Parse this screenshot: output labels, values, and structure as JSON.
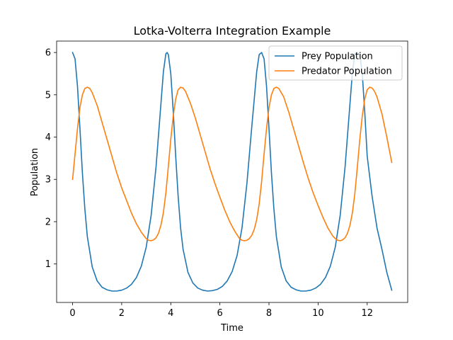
{
  "chart_data": {
    "type": "line",
    "title": "Lotka-Volterra Integration Example",
    "xlabel": "Time",
    "ylabel": "Population",
    "xlim": [
      -0.65,
      13.65
    ],
    "ylim": [
      0.09,
      6.27
    ],
    "xticks": [
      0,
      2,
      4,
      6,
      8,
      10,
      12
    ],
    "yticks": [
      1,
      2,
      3,
      4,
      5,
      6
    ],
    "grid": false,
    "legend_position": "upper-right",
    "series": [
      {
        "name": "Prey Population",
        "color": "#1f77b4",
        "x": [
          0,
          0.1,
          0.2,
          0.3,
          0.4,
          0.5,
          0.6,
          0.8,
          1.0,
          1.2,
          1.4,
          1.6,
          1.8,
          2.0,
          2.2,
          2.4,
          2.6,
          2.8,
          3.0,
          3.2,
          3.4,
          3.6,
          3.7,
          3.8,
          3.85,
          3.9,
          4.0,
          4.1,
          4.2,
          4.3,
          4.4,
          4.5,
          4.7,
          4.9,
          5.1,
          5.3,
          5.5,
          5.7,
          5.9,
          6.1,
          6.3,
          6.5,
          6.7,
          6.9,
          7.1,
          7.3,
          7.5,
          7.6,
          7.7,
          7.8,
          7.9,
          8.0,
          8.1,
          8.2,
          8.3,
          8.5,
          8.7,
          8.9,
          9.1,
          9.3,
          9.5,
          9.7,
          9.9,
          10.1,
          10.3,
          10.5,
          10.7,
          10.9,
          11.1,
          11.3,
          11.4,
          11.5,
          11.6,
          11.7,
          11.8,
          11.9,
          12.0,
          12.2,
          12.4,
          12.6,
          12.8,
          13.0
        ],
        "y": [
          6.0,
          5.85,
          5.2,
          4.2,
          3.15,
          2.3,
          1.65,
          0.93,
          0.6,
          0.45,
          0.39,
          0.36,
          0.36,
          0.38,
          0.43,
          0.52,
          0.68,
          0.95,
          1.4,
          2.15,
          3.3,
          4.8,
          5.55,
          5.97,
          6.0,
          5.95,
          5.5,
          4.6,
          3.55,
          2.6,
          1.85,
          1.35,
          0.8,
          0.55,
          0.43,
          0.38,
          0.36,
          0.37,
          0.4,
          0.47,
          0.6,
          0.82,
          1.2,
          1.85,
          2.9,
          4.25,
          5.55,
          5.95,
          6.0,
          5.85,
          5.2,
          4.2,
          3.15,
          2.3,
          1.65,
          0.93,
          0.6,
          0.45,
          0.39,
          0.36,
          0.36,
          0.38,
          0.43,
          0.52,
          0.68,
          0.95,
          1.4,
          2.15,
          3.3,
          4.8,
          5.55,
          5.97,
          6.0,
          5.95,
          5.5,
          4.6,
          3.55,
          2.6,
          1.85,
          1.35,
          0.8,
          0.38
        ]
      },
      {
        "name": "Predator Population",
        "color": "#ff7f0e",
        "x": [
          0,
          0.1,
          0.2,
          0.3,
          0.4,
          0.5,
          0.6,
          0.7,
          0.8,
          1.0,
          1.2,
          1.4,
          1.6,
          1.8,
          2.0,
          2.2,
          2.4,
          2.6,
          2.8,
          3.0,
          3.1,
          3.2,
          3.3,
          3.4,
          3.5,
          3.6,
          3.7,
          3.8,
          3.9,
          4.0,
          4.1,
          4.2,
          4.3,
          4.4,
          4.5,
          4.6,
          4.8,
          5.0,
          5.2,
          5.4,
          5.6,
          5.8,
          6.0,
          6.2,
          6.4,
          6.6,
          6.8,
          6.9,
          7.0,
          7.1,
          7.2,
          7.3,
          7.4,
          7.5,
          7.6,
          7.7,
          7.8,
          7.9,
          8.0,
          8.1,
          8.2,
          8.3,
          8.4,
          8.6,
          8.8,
          9.0,
          9.2,
          9.4,
          9.6,
          9.8,
          10.0,
          10.2,
          10.4,
          10.6,
          10.7,
          10.8,
          10.9,
          11.0,
          11.1,
          11.2,
          11.3,
          11.4,
          11.5,
          11.6,
          11.7,
          11.8,
          11.9,
          12.0,
          12.1,
          12.2,
          12.3,
          12.4,
          12.6,
          12.8,
          13.0
        ],
        "y": [
          3.0,
          3.6,
          4.2,
          4.7,
          5.0,
          5.15,
          5.18,
          5.15,
          5.05,
          4.75,
          4.35,
          3.95,
          3.55,
          3.15,
          2.8,
          2.5,
          2.2,
          1.95,
          1.75,
          1.6,
          1.56,
          1.55,
          1.57,
          1.62,
          1.73,
          1.92,
          2.22,
          2.68,
          3.3,
          3.95,
          4.5,
          4.9,
          5.12,
          5.18,
          5.16,
          5.08,
          4.8,
          4.45,
          4.05,
          3.65,
          3.25,
          2.9,
          2.58,
          2.27,
          2.0,
          1.78,
          1.6,
          1.56,
          1.55,
          1.56,
          1.6,
          1.68,
          1.82,
          2.05,
          2.42,
          2.95,
          3.6,
          4.2,
          4.7,
          5.0,
          5.15,
          5.18,
          5.15,
          4.95,
          4.6,
          4.2,
          3.8,
          3.4,
          3.02,
          2.68,
          2.38,
          2.1,
          1.85,
          1.66,
          1.6,
          1.56,
          1.55,
          1.57,
          1.62,
          1.73,
          1.92,
          2.22,
          2.68,
          3.3,
          3.95,
          4.5,
          4.9,
          5.12,
          5.18,
          5.16,
          5.08,
          4.95,
          4.55,
          4.0,
          3.4
        ]
      }
    ]
  }
}
